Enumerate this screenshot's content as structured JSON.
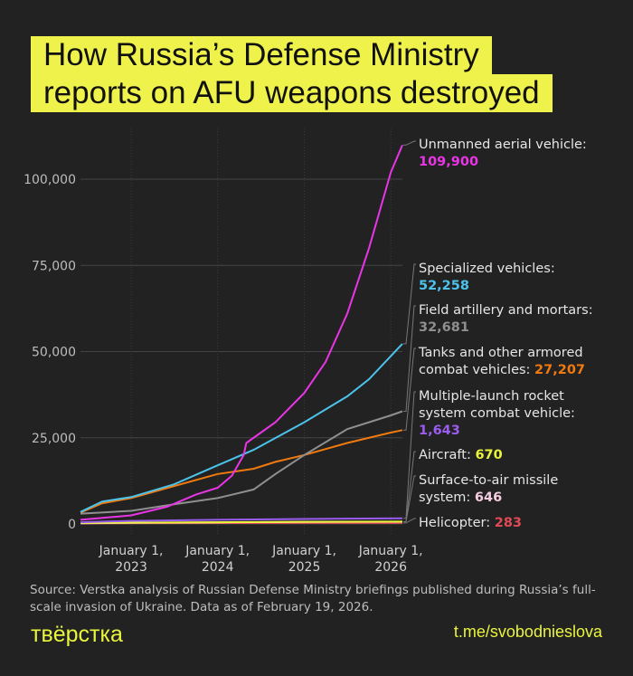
{
  "title": {
    "line1": "How Russia’s Defense Ministry",
    "line2": "reports on AFU weapons destroyed"
  },
  "source": "Source: Verstka analysis of Russian Defense Ministry briefings published during Russia’s full-scale invasion of Ukraine. Data as of February 19, 2026.",
  "logo": "твёрстка",
  "link": "t.me/svobodnieslova",
  "chart_data": {
    "type": "line",
    "title": "How Russia’s Defense Ministry reports on AFU weapons destroyed",
    "ylim": [
      0,
      110000
    ],
    "xlim": [
      "2022-06",
      "2026-02-19"
    ],
    "grid": true,
    "yticks": [
      {
        "v": 0,
        "label": "0"
      },
      {
        "v": 25000,
        "label": "25,000"
      },
      {
        "v": 50000,
        "label": "50,000"
      },
      {
        "v": 75000,
        "label": "75,000"
      },
      {
        "v": 100000,
        "label": "100,000"
      }
    ],
    "xticks": [
      {
        "d": "2023-01-01",
        "l1": "January 1,",
        "l2": "2023"
      },
      {
        "d": "2024-01-01",
        "l1": "January 1,",
        "l2": "2024"
      },
      {
        "d": "2025-01-01",
        "l1": "January 1,",
        "l2": "2025"
      },
      {
        "d": "2026-01-01",
        "l1": "January 1,",
        "l2": "2026"
      }
    ],
    "series": [
      {
        "name": "Unmanned aerial vehicle:",
        "final": "109,900",
        "color": "#e935e6",
        "points": [
          [
            "2022-06-01",
            1200
          ],
          [
            "2023-01-01",
            2500
          ],
          [
            "2023-06-01",
            5000
          ],
          [
            "2023-10-01",
            8500
          ],
          [
            "2024-01-01",
            10500
          ],
          [
            "2024-03-01",
            14000
          ],
          [
            "2024-04-20",
            20000
          ],
          [
            "2024-05-01",
            23500
          ],
          [
            "2024-09-01",
            29500
          ],
          [
            "2025-01-01",
            38000
          ],
          [
            "2025-04-01",
            47000
          ],
          [
            "2025-07-01",
            61000
          ],
          [
            "2025-10-01",
            80000
          ],
          [
            "2026-01-01",
            102000
          ],
          [
            "2026-02-19",
            109900
          ]
        ]
      },
      {
        "name": "Specialized vehicles:",
        "final": "52,258",
        "color": "#4cc3eb",
        "points": [
          [
            "2022-06-01",
            3500
          ],
          [
            "2022-09-01",
            6500
          ],
          [
            "2023-01-01",
            7800
          ],
          [
            "2023-07-01",
            11500
          ],
          [
            "2024-01-01",
            17000
          ],
          [
            "2024-06-01",
            21500
          ],
          [
            "2025-01-01",
            29500
          ],
          [
            "2025-07-01",
            37000
          ],
          [
            "2025-10-01",
            42000
          ],
          [
            "2026-02-19",
            52258
          ]
        ]
      },
      {
        "name": "Field artillery and mortars:",
        "final": "32,681",
        "color": "#8f8f8f",
        "points": [
          [
            "2022-06-01",
            3000
          ],
          [
            "2023-01-01",
            3800
          ],
          [
            "2023-07-01",
            5700
          ],
          [
            "2024-01-01",
            7500
          ],
          [
            "2024-06-01",
            10000
          ],
          [
            "2024-09-01",
            14500
          ],
          [
            "2025-01-01",
            20000
          ],
          [
            "2025-07-01",
            27500
          ],
          [
            "2026-01-01",
            31500
          ],
          [
            "2026-02-19",
            32681
          ]
        ]
      },
      {
        "name": "Tanks and other armored combat vehicles:",
        "final": "27,207",
        "color": "#f07a10",
        "points": [
          [
            "2022-06-01",
            3300
          ],
          [
            "2022-09-01",
            6000
          ],
          [
            "2023-01-01",
            7500
          ],
          [
            "2023-07-01",
            11000
          ],
          [
            "2024-01-01",
            14500
          ],
          [
            "2024-06-01",
            16000
          ],
          [
            "2024-09-01",
            18000
          ],
          [
            "2025-01-01",
            20000
          ],
          [
            "2025-07-01",
            23500
          ],
          [
            "2026-01-01",
            26500
          ],
          [
            "2026-02-19",
            27207
          ]
        ]
      },
      {
        "name": "Multiple-launch rocket system combat vehicle:",
        "final": "1,643",
        "color": "#9b5cf0",
        "points": [
          [
            "2022-06-01",
            500
          ],
          [
            "2023-01-01",
            900
          ],
          [
            "2024-01-01",
            1200
          ],
          [
            "2025-01-01",
            1450
          ],
          [
            "2026-02-19",
            1643
          ]
        ]
      },
      {
        "name": "Aircraft:",
        "final": "670",
        "color": "#e9f53c",
        "points": [
          [
            "2022-06-01",
            300
          ],
          [
            "2023-01-01",
            390
          ],
          [
            "2024-01-01",
            500
          ],
          [
            "2025-01-01",
            640
          ],
          [
            "2026-02-19",
            670
          ]
        ]
      },
      {
        "name": "Surface-to-air missile system:",
        "final": "646",
        "color": "#f5cde0",
        "points": [
          [
            "2022-06-01",
            200
          ],
          [
            "2023-01-01",
            350
          ],
          [
            "2024-01-01",
            480
          ],
          [
            "2025-01-01",
            600
          ],
          [
            "2026-02-19",
            646
          ]
        ]
      },
      {
        "name": "Helicopter:",
        "final": "283",
        "color": "#e04a55",
        "points": [
          [
            "2022-06-01",
            150
          ],
          [
            "2023-01-01",
            240
          ],
          [
            "2024-01-01",
            265
          ],
          [
            "2025-01-01",
            280
          ],
          [
            "2026-02-19",
            283
          ]
        ]
      }
    ]
  }
}
